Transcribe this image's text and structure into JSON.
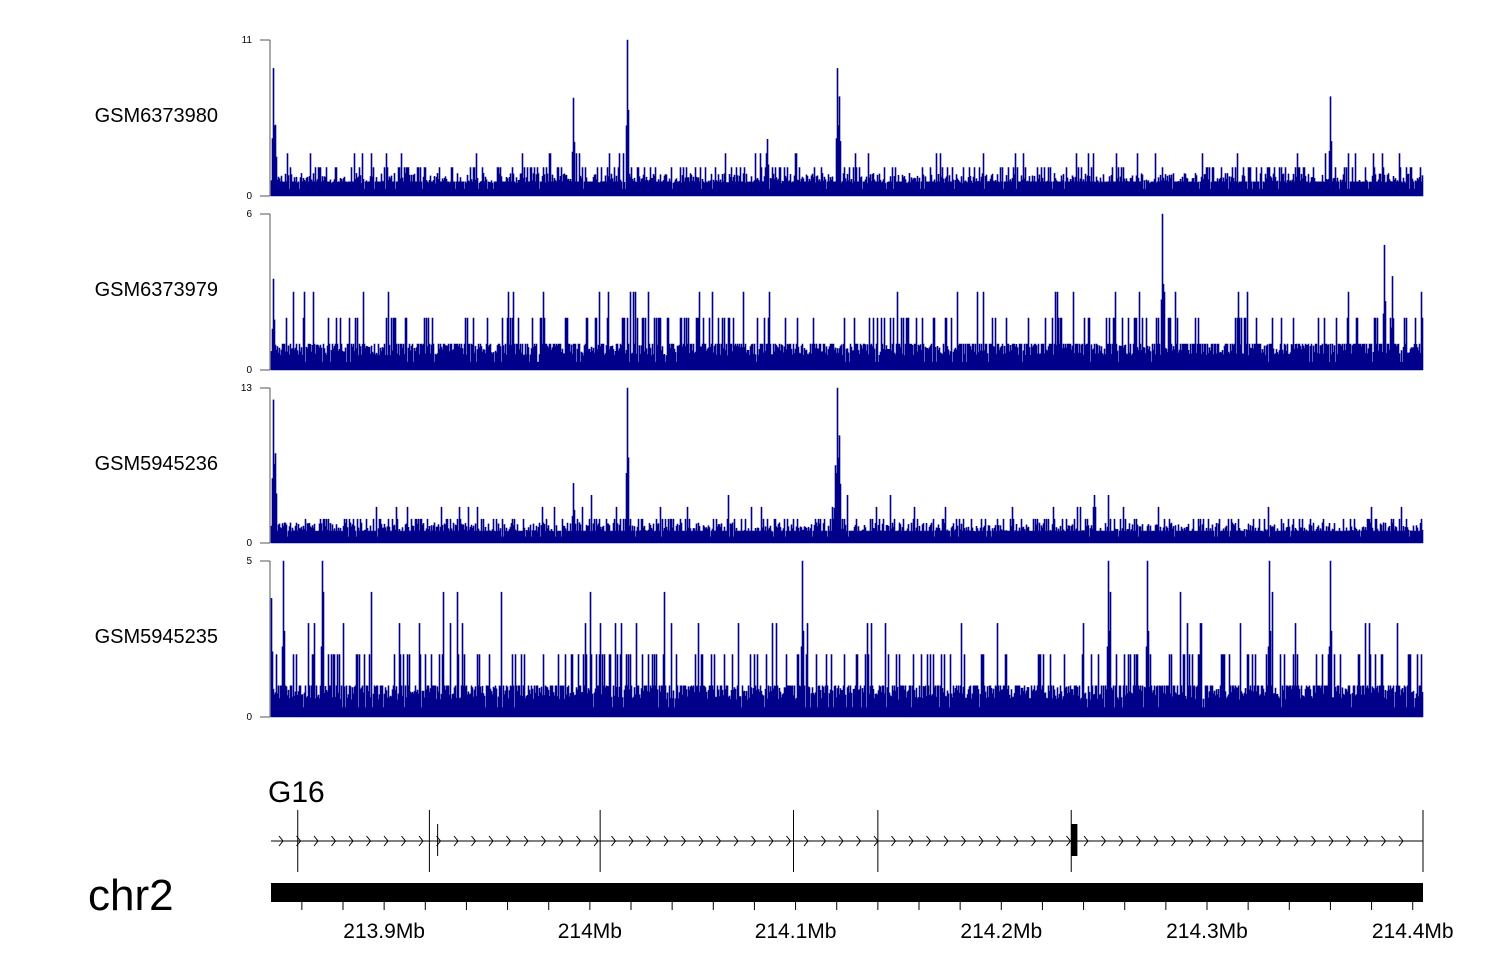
{
  "chart_data": {
    "type": "area",
    "chromosome": "chr2",
    "x_range": [
      213.845,
      214.405
    ],
    "x_unit": "Mb",
    "x_ticks": [
      213.9,
      214.0,
      214.1,
      214.2,
      214.3,
      214.4
    ],
    "x_tick_labels": [
      "213.9Mb",
      "214Mb",
      "214.1Mb",
      "214.2Mb",
      "214.3Mb",
      "214.4Mb"
    ],
    "color": "#00008b",
    "tracks": [
      {
        "name": "GSM6373980",
        "ymax_label": "11",
        "ymin_label": "0",
        "ylim": [
          0,
          11
        ],
        "baseline": 1.6,
        "seed": 11,
        "noise_levels": [
          1,
          2,
          3
        ],
        "peaks": [
          {
            "x": 213.846,
            "h": 9.0
          },
          {
            "x": 213.847,
            "h": 5.0
          },
          {
            "x": 213.992,
            "h": 6.9
          },
          {
            "x": 214.018,
            "h": 11.0
          },
          {
            "x": 214.086,
            "h": 4.0
          },
          {
            "x": 214.12,
            "h": 9.0
          },
          {
            "x": 214.121,
            "h": 7.0
          },
          {
            "x": 214.36,
            "h": 7.0
          }
        ]
      },
      {
        "name": "GSM6373979",
        "ymax_label": "6",
        "ymin_label": "0",
        "ylim": [
          0,
          6
        ],
        "baseline": 1.0,
        "seed": 23,
        "noise_levels": [
          1,
          2,
          3
        ],
        "peaks": [
          {
            "x": 214.278,
            "h": 6.0
          },
          {
            "x": 214.386,
            "h": 4.8
          },
          {
            "x": 214.39,
            "h": 3.6
          },
          {
            "x": 213.846,
            "h": 3.5
          }
        ]
      },
      {
        "name": "GSM5945236",
        "ymax_label": "13",
        "ymin_label": "0",
        "ylim": [
          0,
          13
        ],
        "baseline": 1.7,
        "seed": 37,
        "noise_levels": [
          1,
          2,
          3,
          4
        ],
        "peaks": [
          {
            "x": 213.846,
            "h": 12.0
          },
          {
            "x": 213.847,
            "h": 7.5
          },
          {
            "x": 213.992,
            "h": 5.0
          },
          {
            "x": 214.018,
            "h": 13.0
          },
          {
            "x": 214.119,
            "h": 6.5
          },
          {
            "x": 214.12,
            "h": 13.0
          },
          {
            "x": 214.121,
            "h": 9.0
          }
        ]
      },
      {
        "name": "GSM5945235",
        "ymax_label": "5",
        "ymin_label": "0",
        "ylim": [
          0,
          5
        ],
        "baseline": 1.0,
        "seed": 51,
        "noise_levels": [
          1,
          2,
          3,
          4
        ],
        "peaks": [
          {
            "x": 213.845,
            "h": 3.8
          },
          {
            "x": 213.851,
            "h": 5.0
          },
          {
            "x": 213.87,
            "h": 5.0
          },
          {
            "x": 214.103,
            "h": 5.0
          },
          {
            "x": 214.252,
            "h": 5.0
          },
          {
            "x": 214.271,
            "h": 5.0
          },
          {
            "x": 214.33,
            "h": 5.0
          },
          {
            "x": 214.36,
            "h": 5.0
          }
        ]
      }
    ],
    "gene": {
      "name": "G16",
      "start": 213.845,
      "end": 214.405,
      "strand": "+",
      "exons": [
        213.858,
        213.922,
        213.926,
        214.005,
        214.099,
        214.14,
        214.234,
        214.405
      ],
      "coding_exon": {
        "start": 214.234,
        "end": 214.237
      }
    }
  }
}
